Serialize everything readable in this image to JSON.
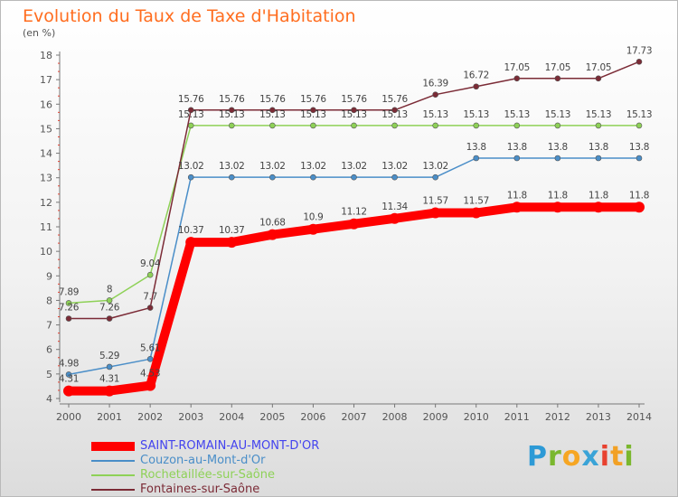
{
  "header": {
    "title": "Evolution du Taux de Taxe d'Habitation",
    "unit": "(en %)"
  },
  "brand": {
    "letters": [
      "P",
      "r",
      "o",
      "x",
      "i",
      "t",
      "i"
    ],
    "colors": [
      "#2d9ad6",
      "#7ab72e",
      "#f6a623",
      "#3aa3d7",
      "#e8412f",
      "#f2a125",
      "#7ab72e"
    ]
  },
  "colors": {
    "axis": "#777777",
    "grid_tick": "#e04030",
    "text": "#555555"
  },
  "chart_data": {
    "type": "line",
    "title": "Evolution du Taux de Taxe d'Habitation",
    "ylabel": "(en %)",
    "xlabel": "",
    "x": [
      2000,
      2001,
      2002,
      2003,
      2004,
      2005,
      2006,
      2007,
      2008,
      2009,
      2010,
      2011,
      2012,
      2013,
      2014
    ],
    "ylim": [
      4,
      18
    ],
    "yticks": [
      4,
      5,
      6,
      7,
      8,
      9,
      10,
      11,
      12,
      13,
      14,
      15,
      16,
      17,
      18
    ],
    "legend_position": "bottom-left",
    "series": [
      {
        "name": "SAINT-ROMAIN-AU-MONT-D'OR",
        "color": "#ff0000",
        "label_color": "#4444ee",
        "emphasis": true,
        "values": [
          4.31,
          4.31,
          4.53,
          10.37,
          10.37,
          10.68,
          10.9,
          11.12,
          11.34,
          11.57,
          11.57,
          11.8,
          11.8,
          11.8,
          11.8
        ],
        "labels": [
          "4.31",
          "4.31",
          "4.53",
          "10.37",
          "10.37",
          "10.68",
          "10.9",
          "11.12",
          "11.34",
          "11.57",
          "11.57",
          "11.8",
          "11.8",
          "11.8",
          "11.8"
        ]
      },
      {
        "name": "Couzon-au-Mont-d'Or",
        "color": "#4a8ec8",
        "label_color": "#4a8ec8",
        "emphasis": false,
        "values": [
          4.98,
          5.29,
          5.61,
          13.02,
          13.02,
          13.02,
          13.02,
          13.02,
          13.02,
          13.02,
          13.8,
          13.8,
          13.8,
          13.8,
          13.8
        ],
        "labels": [
          "4.98",
          "5.29",
          "5.61",
          "13.02",
          "13.02",
          "13.02",
          "13.02",
          "13.02",
          "13.02",
          "13.02",
          "13.8",
          "13.8",
          "13.8",
          "13.8",
          "13.8"
        ]
      },
      {
        "name": "Rochetaillée-sur-Saône",
        "color": "#8ed157",
        "label_color": "#8ed157",
        "emphasis": false,
        "values": [
          7.89,
          8,
          9.04,
          15.13,
          15.13,
          15.13,
          15.13,
          15.13,
          15.13,
          15.13,
          15.13,
          15.13,
          15.13,
          15.13,
          15.13
        ],
        "labels": [
          "7.89",
          "8",
          "9.04",
          "15.13",
          "15.13",
          "15.13",
          "15.13",
          "15.13",
          "15.13",
          "15.13",
          "15.13",
          "15.13",
          "15.13",
          "15.13",
          "15.13"
        ]
      },
      {
        "name": "Fontaines-sur-Saône",
        "color": "#7b2b36",
        "label_color": "#7b2b36",
        "emphasis": false,
        "values": [
          7.26,
          7.26,
          7.7,
          15.76,
          15.76,
          15.76,
          15.76,
          15.76,
          15.76,
          16.39,
          16.72,
          17.05,
          17.05,
          17.05,
          17.73
        ],
        "labels": [
          "7.26",
          "7.26",
          "7.7",
          "15.76",
          "15.76",
          "15.76",
          "15.76",
          "15.76",
          "15.76",
          "16.39",
          "16.72",
          "17.05",
          "17.05",
          "17.05",
          "17.73"
        ]
      }
    ]
  }
}
